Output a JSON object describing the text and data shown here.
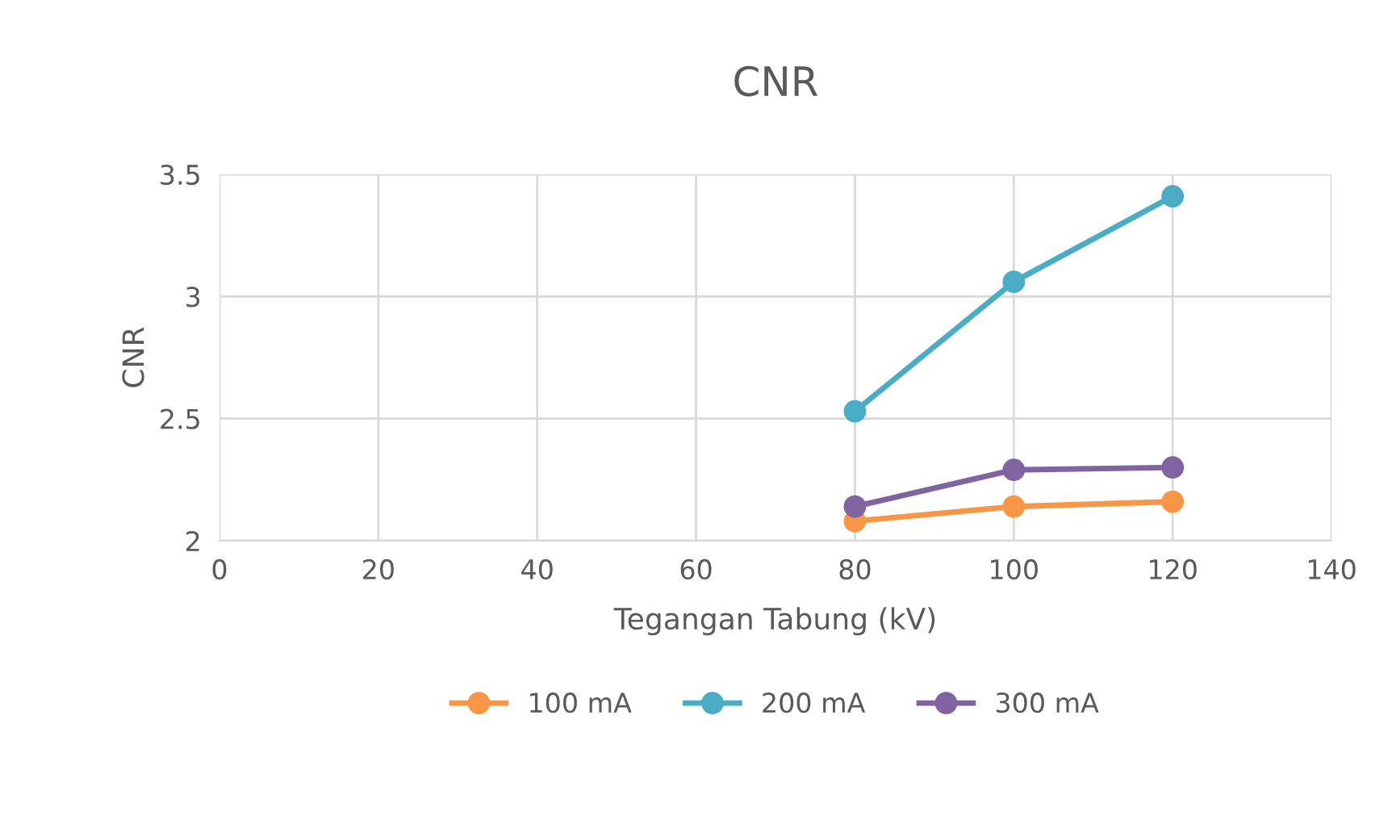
{
  "chart_data": {
    "type": "line",
    "title": "CNR",
    "xlabel": "Tegangan Tabung (kV)",
    "ylabel": "CNR",
    "x": [
      80,
      100,
      120
    ],
    "series": [
      {
        "name": "100 mA",
        "color": "#f79646",
        "values": [
          2.08,
          2.14,
          2.16
        ]
      },
      {
        "name": "200 mA",
        "color": "#4bacc6",
        "values": [
          2.53,
          3.06,
          3.41
        ]
      },
      {
        "name": "300 mA",
        "color": "#8064a2",
        "values": [
          2.14,
          2.29,
          2.3
        ]
      }
    ],
    "xlim": [
      0,
      140
    ],
    "xticks": [
      0,
      20,
      40,
      60,
      80,
      100,
      120,
      140
    ],
    "ylim": [
      2,
      3.5
    ],
    "yticks": [
      2,
      2.5,
      3,
      3.5
    ],
    "grid": true,
    "legend": "bottom",
    "marker": "circle",
    "line_style": "solid"
  }
}
